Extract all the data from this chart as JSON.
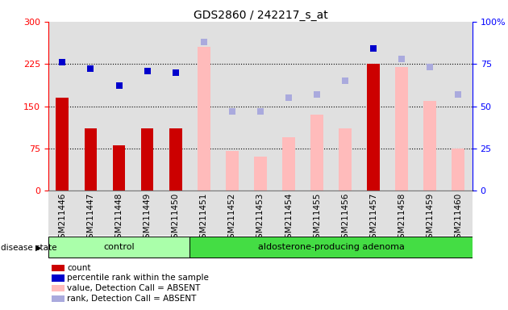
{
  "title": "GDS2860 / 242217_s_at",
  "samples": [
    "GSM211446",
    "GSM211447",
    "GSM211448",
    "GSM211449",
    "GSM211450",
    "GSM211451",
    "GSM211452",
    "GSM211453",
    "GSM211454",
    "GSM211455",
    "GSM211456",
    "GSM211457",
    "GSM211458",
    "GSM211459",
    "GSM211460"
  ],
  "n_control": 5,
  "n_adenoma": 10,
  "count_values": [
    165,
    110,
    80,
    110,
    110,
    null,
    null,
    null,
    null,
    null,
    null,
    225,
    null,
    null,
    null
  ],
  "absent_value": [
    null,
    null,
    null,
    null,
    null,
    255,
    70,
    60,
    95,
    135,
    110,
    null,
    220,
    160,
    75
  ],
  "percentile_rank_pct": [
    76,
    72,
    62,
    71,
    70,
    null,
    null,
    null,
    null,
    null,
    null,
    84,
    null,
    null,
    null
  ],
  "absent_rank_pct": [
    null,
    null,
    null,
    null,
    null,
    88,
    47,
    47,
    55,
    57,
    65,
    null,
    78,
    73,
    57
  ],
  "ylim_left": [
    0,
    300
  ],
  "ylim_right": [
    0,
    100
  ],
  "yticks_left": [
    0,
    75,
    150,
    225,
    300
  ],
  "yticks_right": [
    0,
    25,
    50,
    75,
    100
  ],
  "color_count": "#cc0000",
  "color_percentile": "#0000cc",
  "color_absent_value": "#ffbbbb",
  "color_absent_rank": "#aaaadd",
  "col_bg_dark": "#cccccc",
  "col_bg_light": "#dddddd",
  "group_control_color": "#aaffaa",
  "group_adenoma_color": "#44dd44",
  "legend_labels": [
    "count",
    "percentile rank within the sample",
    "value, Detection Call = ABSENT",
    "rank, Detection Call = ABSENT"
  ],
  "legend_colors": [
    "#cc0000",
    "#0000cc",
    "#ffbbbb",
    "#aaaadd"
  ]
}
